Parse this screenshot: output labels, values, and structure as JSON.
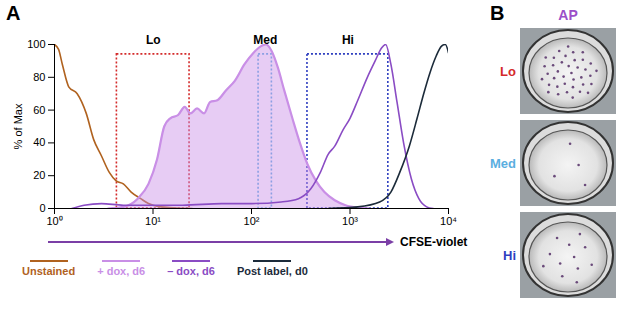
{
  "chart_data": {
    "type": "line",
    "panel_label": "A",
    "xlabel": "CFSE-violet",
    "ylabel": "% of Max",
    "log": "x",
    "grid": false,
    "legend": "bottom",
    "xlim": [
      1,
      10000
    ],
    "xticks": [
      {
        "value": 1,
        "label": "10⁰"
      },
      {
        "value": 10,
        "label": "10¹"
      },
      {
        "value": 100,
        "label": "10²"
      },
      {
        "value": 1000,
        "label": "10³"
      },
      {
        "value": 10000,
        "label": "10⁴"
      }
    ],
    "ylim": [
      0,
      100
    ],
    "yticks": [
      0,
      20,
      40,
      60,
      80,
      100
    ],
    "series": [
      {
        "name": "Unstained",
        "color": "#b0621f",
        "type": "line",
        "x": [
          1,
          1.1,
          1.2,
          1.4,
          1.7,
          2.1,
          2.5,
          3,
          3.6,
          4.2,
          5,
          6,
          7.5,
          9,
          12,
          16,
          25
        ],
        "values": [
          100,
          97,
          88,
          74,
          70,
          58,
          42,
          32,
          22,
          17,
          15,
          10,
          6,
          3,
          1,
          0.5,
          0
        ]
      },
      {
        "name": "+ dox, d6",
        "color": "#c98fe6",
        "type": "area",
        "x": [
          3.5,
          5,
          7,
          9,
          11,
          13,
          15,
          18,
          21,
          24,
          28,
          33,
          38,
          45,
          55,
          68,
          85,
          105,
          125,
          140,
          160,
          185,
          215,
          260,
          310,
          370,
          450,
          550,
          700,
          900,
          1200,
          1600
        ],
        "values": [
          0,
          1,
          6,
          15,
          30,
          50,
          55,
          57,
          62,
          58,
          61,
          58,
          65,
          66,
          72,
          78,
          88,
          95,
          99,
          100,
          96,
          86,
          72,
          55,
          40,
          27,
          17,
          10,
          5,
          2,
          0.5,
          0
        ]
      },
      {
        "name": "– dox, d6",
        "color": "#8a4cc4",
        "type": "line",
        "x": [
          1.5,
          2,
          3,
          5,
          10,
          20,
          50,
          100,
          200,
          300,
          400,
          500,
          600,
          700,
          850,
          1000,
          1200,
          1500,
          1800,
          2100,
          2300,
          2600,
          3000,
          3500,
          4200,
          5000,
          6000,
          7000
        ],
        "values": [
          0,
          2,
          3,
          2,
          2,
          2,
          3,
          3,
          4,
          6,
          12,
          22,
          33,
          38,
          48,
          55,
          66,
          80,
          90,
          98,
          100,
          88,
          65,
          40,
          18,
          6,
          1,
          0
        ]
      },
      {
        "name": "Post label, d0",
        "color": "#1c2b3a",
        "type": "line",
        "x": [
          600,
          1200,
          2000,
          2600,
          3200,
          4000,
          4800,
          5600,
          6500,
          7500,
          8500,
          9300,
          10000
        ],
        "values": [
          0,
          1,
          4,
          10,
          22,
          38,
          55,
          70,
          83,
          93,
          99,
          100,
          95
        ]
      }
    ],
    "gates": [
      {
        "label": "Lo",
        "x": [
          4.3,
          23.5
        ],
        "y": [
          0,
          94
        ],
        "color": "#d42a2a",
        "line_style": "dotted"
      },
      {
        "label": "Med",
        "x": [
          118,
          161
        ],
        "y": [
          0,
          94
        ],
        "color": "#5aaee0",
        "line_style": "dotted"
      },
      {
        "label": "Hi",
        "x": [
          370,
          2450
        ],
        "y": [
          0,
          94
        ],
        "color": "#2f3fc0",
        "line_style": "dotted"
      }
    ]
  },
  "panel_b": {
    "panel_label": "B",
    "title": "AP",
    "color": "#9b4fc9",
    "rows": [
      {
        "label": "Lo",
        "color": "#d42a2a"
      },
      {
        "label": "Med",
        "color": "#5aaee0"
      },
      {
        "label": "Hi",
        "color": "#2f3fc0"
      }
    ]
  }
}
